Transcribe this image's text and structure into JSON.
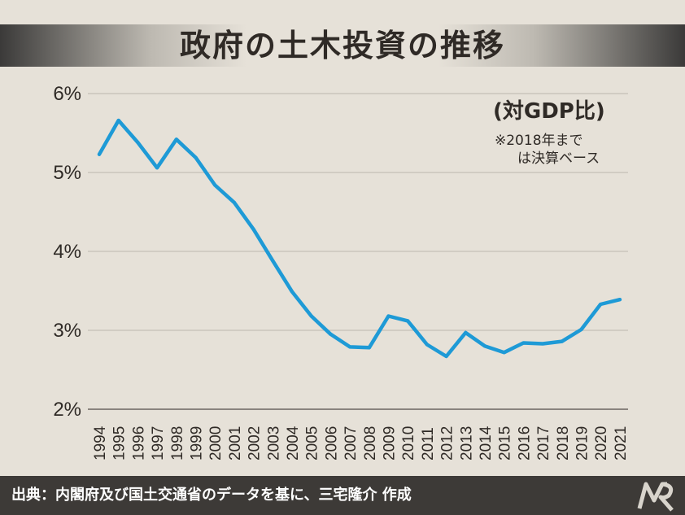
{
  "title": "政府の土木投資の推移",
  "unit_label": "(対GDP比)",
  "note_line1": "※2018年まで",
  "note_line2": "は決算ベース",
  "source": "出典：内閣府及び国土交通省のデータを基に、三宅隆介 作成",
  "colors": {
    "line": "#1e9ad6",
    "grid": "#bcb7ae",
    "text": "#2f2a26",
    "background": "#e6e1d8",
    "footer": "#3d3a37"
  },
  "logo_icon": "mr-logo-icon",
  "chart_data": {
    "type": "line",
    "title": "政府の土木投資の推移",
    "xlabel": "",
    "ylabel": "",
    "ylim": [
      2,
      6
    ],
    "yticks": [
      {
        "value": 2,
        "label": "2%"
      },
      {
        "value": 3,
        "label": "3%"
      },
      {
        "value": 4,
        "label": "4%"
      },
      {
        "value": 5,
        "label": "5%"
      },
      {
        "value": 6,
        "label": "6%"
      }
    ],
    "grid": true,
    "categories": [
      "1994",
      "1995",
      "1996",
      "1997",
      "1998",
      "1999",
      "2000",
      "2001",
      "2002",
      "2003",
      "2004",
      "2005",
      "2006",
      "2007",
      "2008",
      "2009",
      "2010",
      "2011",
      "2012",
      "2013",
      "2014",
      "2015",
      "2016",
      "2017",
      "2018",
      "2019",
      "2020",
      "2021"
    ],
    "series": [
      {
        "values": [
          5.23,
          5.66,
          5.38,
          5.06,
          5.42,
          5.19,
          4.84,
          4.62,
          4.28,
          3.88,
          3.49,
          3.18,
          2.95,
          2.79,
          2.78,
          3.18,
          3.12,
          2.82,
          2.67,
          2.97,
          2.8,
          2.72,
          2.84,
          2.83,
          2.86,
          3.01,
          3.33,
          3.39
        ]
      }
    ]
  }
}
